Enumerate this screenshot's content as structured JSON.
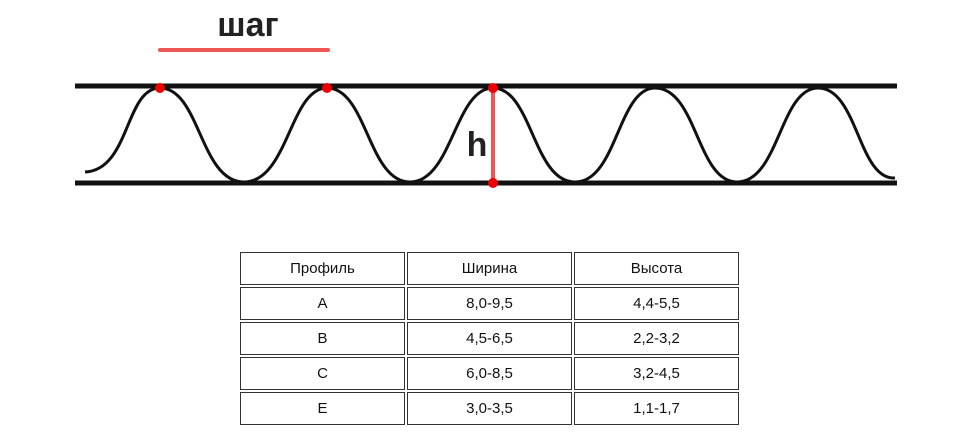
{
  "diagram": {
    "step_label": "шаг",
    "height_label": "h"
  },
  "table": {
    "header": [
      "Профиль",
      "Ширина",
      "Высота"
    ],
    "rows": [
      [
        "A",
        "8,0-9,5",
        "4,4-5,5"
      ],
      [
        "B",
        "4,5-6,5",
        "2,2-3,2"
      ],
      [
        "C",
        "6,0-8,5",
        "3,2-4,5"
      ],
      [
        "E",
        "3,0-3,5",
        "1,1-1,7"
      ]
    ]
  }
}
